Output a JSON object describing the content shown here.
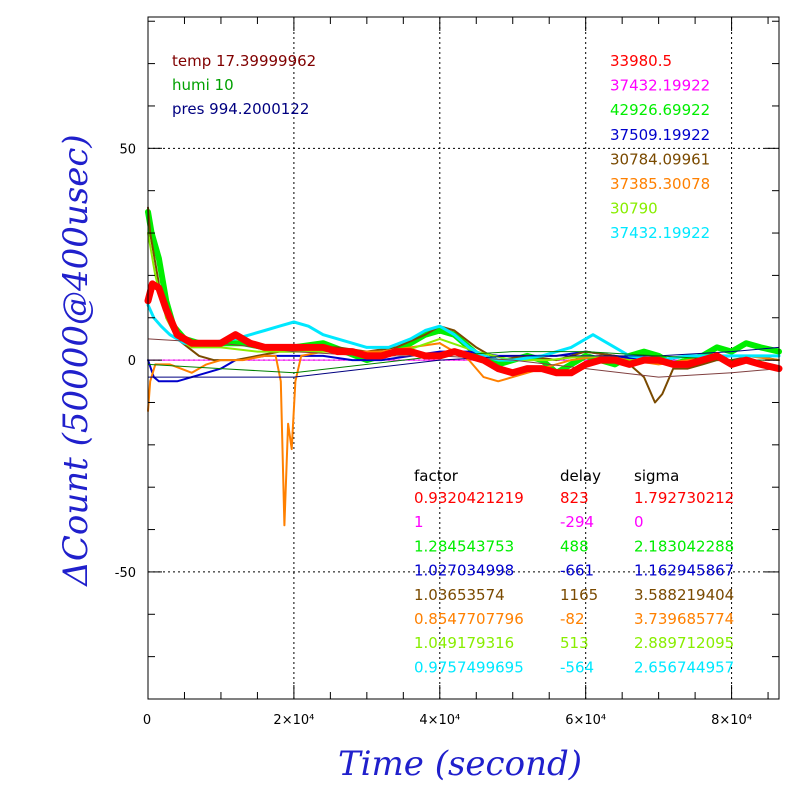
{
  "chart_data": {
    "type": "line",
    "xlabel": "Time (second)",
    "ylabel": "ΔCount (50000@400usec)",
    "xlim": [
      0,
      86500
    ],
    "ylim": [
      -80,
      81
    ],
    "grid": true,
    "x_tick_labels": [
      "0",
      "2×10⁴",
      "4×10⁴",
      "6×10⁴",
      "8×10⁴"
    ],
    "x_tick_values": [
      0,
      20000,
      40000,
      60000,
      80000
    ],
    "y_tick_labels": [
      "50",
      "0",
      "-50"
    ],
    "y_tick_values": [
      50,
      0,
      -50
    ],
    "env_info": [
      {
        "label": "temp 17.39999962",
        "color": "#800000"
      },
      {
        "label": "humi 10",
        "color": "#00a000"
      },
      {
        "label": "pres 994.2000122",
        "color": "#000080"
      }
    ],
    "reference_values": [
      "33980.5",
      "37432.19922",
      "42926.69922",
      "37509.19922",
      "30784.09961",
      "37385.30078",
      "30790",
      "37432.19922"
    ],
    "table_headers": [
      "factor",
      "delay",
      "sigma"
    ],
    "table_rows": [
      [
        "0.9320421219",
        "823",
        "1.792730212"
      ],
      [
        "1",
        "-294",
        "0"
      ],
      [
        "1.284543753",
        "488",
        "2.183042288"
      ],
      [
        "1.027034998",
        "-661",
        "1.162945867"
      ],
      [
        "1.03653574",
        "1165",
        "3.588219404"
      ],
      [
        "0.8547707796",
        "-82",
        "3.739685774"
      ],
      [
        "1.049179316",
        "513",
        "2.889712095"
      ],
      [
        "0.9757499695",
        "-564",
        "2.656744957"
      ]
    ],
    "series": [
      {
        "color": "#ff0000",
        "width": 7,
        "x": [
          0,
          600,
          1500,
          2500,
          4000,
          6000,
          8000,
          10000,
          12000,
          14000,
          16000,
          18000,
          20000,
          22000,
          24000,
          26000,
          28000,
          30000,
          32000,
          34000,
          36000,
          38000,
          40000,
          42000,
          44000,
          46000,
          48000,
          50000,
          52000,
          54000,
          56000,
          58000,
          60000,
          62000,
          64000,
          66000,
          68000,
          70000,
          72000,
          74000,
          76000,
          78000,
          80000,
          82000,
          84000,
          86500
        ],
        "y": [
          14,
          18,
          17,
          12,
          6,
          4,
          4,
          4,
          6,
          4,
          3,
          3,
          3,
          3,
          3,
          2,
          2,
          1,
          1,
          2,
          2,
          1,
          1,
          2,
          1,
          0,
          -2,
          -3,
          -2,
          -2,
          -3,
          -3,
          -1,
          0,
          0,
          -1,
          0,
          0,
          -1,
          -1,
          0,
          1,
          -1,
          0,
          -1,
          -2
        ]
      },
      {
        "color": "#ff00ff",
        "width": 1,
        "x": [
          0,
          86500
        ],
        "y": [
          0,
          0
        ]
      },
      {
        "color": "#00ee00",
        "width": 6,
        "x": [
          0,
          500,
          1500,
          2500,
          3500,
          5000,
          7000,
          10000,
          13000,
          16000,
          20000,
          24000,
          27000,
          30000,
          32000,
          34000,
          36000,
          38000,
          40000,
          42000,
          44000,
          46000,
          48000,
          50000,
          52000,
          54000,
          56000,
          58000,
          60000,
          62000,
          64000,
          66000,
          68000,
          70000,
          72000,
          74000,
          76000,
          78000,
          80000,
          82000,
          84000,
          86500
        ],
        "y": [
          35,
          30,
          24,
          14,
          8,
          5,
          4,
          4,
          4,
          3,
          3,
          4,
          2,
          0,
          1,
          2,
          4,
          6,
          7,
          6,
          3,
          0,
          -1,
          0,
          1,
          0,
          -3,
          -1,
          1,
          0,
          -1,
          1,
          2,
          1,
          -1,
          0,
          1,
          3,
          2,
          4,
          3,
          2
        ]
      },
      {
        "color": "#0000cc",
        "width": 2,
        "x": [
          0,
          800,
          1500,
          2500,
          4000,
          6000,
          8000,
          10000,
          12000,
          16000,
          20000,
          24000,
          28000,
          32000,
          36000,
          40000,
          44000,
          48000,
          52000,
          56000,
          60000,
          64000,
          68000,
          72000,
          76000,
          80000,
          84000,
          86500
        ],
        "y": [
          0,
          -4,
          -5,
          -5,
          -5,
          -4,
          -3,
          -2,
          0,
          1,
          1,
          1,
          0,
          0,
          1,
          2,
          2,
          1,
          1,
          1,
          2,
          1,
          0,
          -1,
          0,
          1,
          1,
          1
        ]
      },
      {
        "color": "#7a4a00",
        "width": 2,
        "x": [
          0,
          300,
          800,
          1500,
          2500,
          4000,
          5500,
          7000,
          9000,
          12000,
          15000,
          18000,
          20000,
          23000,
          26000,
          30000,
          34000,
          38000,
          40000,
          42000,
          45000,
          48000,
          52000,
          56000,
          60000,
          64000,
          66000,
          68000,
          69500,
          70500,
          72000,
          74000,
          76000,
          78000,
          80000,
          83000,
          86500
        ],
        "y": [
          36,
          30,
          25,
          18,
          10,
          5,
          3,
          1,
          0,
          0,
          1,
          2,
          2,
          3,
          3,
          2,
          3,
          6,
          8,
          7,
          3,
          0,
          1,
          0,
          2,
          1,
          -1,
          -4,
          -10,
          -8,
          -2,
          -2,
          -1,
          0,
          0,
          1,
          0
        ]
      },
      {
        "color": "#ff8000",
        "width": 2,
        "x": [
          0,
          300,
          1000,
          2000,
          3000,
          4500,
          6000,
          8000,
          10000,
          13000,
          16000,
          17500,
          18200,
          18700,
          19200,
          19700,
          20200,
          21000,
          24000,
          28000,
          32000,
          36000,
          40000,
          44000,
          46000,
          48000,
          50000,
          54000,
          58000,
          62000,
          66000,
          70000,
          74000,
          78000,
          82000,
          86500
        ],
        "y": [
          -12,
          -5,
          -1,
          -1,
          -1,
          -2,
          -3,
          -1,
          0,
          0,
          1,
          1,
          -5,
          -39,
          -15,
          -21,
          -5,
          1,
          2,
          2,
          2,
          3,
          4,
          0,
          -4,
          -5,
          -4,
          -2,
          0,
          1,
          0,
          -1,
          0,
          1,
          1,
          0
        ]
      },
      {
        "color": "#88ee00",
        "width": 2,
        "x": [
          0,
          1000,
          2500,
          4000,
          6000,
          10000,
          15000,
          20000,
          25000,
          30000,
          35000,
          40000,
          45000,
          50000,
          55000,
          60000,
          65000,
          70000,
          75000,
          80000,
          86500
        ],
        "y": [
          30,
          20,
          10,
          5,
          3,
          3,
          2,
          2,
          2,
          1,
          2,
          5,
          2,
          0,
          0,
          1,
          0,
          0,
          1,
          1,
          1
        ]
      },
      {
        "color": "#00e8ff",
        "width": 3,
        "x": [
          0,
          800,
          1800,
          3000,
          5000,
          8000,
          12000,
          16000,
          18000,
          20000,
          22000,
          24000,
          26000,
          28000,
          30000,
          33000,
          36000,
          38000,
          40000,
          42000,
          44000,
          46000,
          48000,
          50000,
          54000,
          58000,
          60000,
          61000,
          63000,
          66000,
          70000,
          74000,
          78000,
          82000,
          86500
        ],
        "y": [
          13,
          10,
          8,
          6,
          4,
          4,
          5,
          7,
          8,
          9,
          8,
          6,
          5,
          4,
          3,
          3,
          5,
          7,
          8,
          6,
          3,
          1,
          0,
          0,
          1,
          3,
          5,
          6,
          4,
          1,
          0,
          1,
          1,
          1,
          1
        ]
      },
      {
        "color": "#804040",
        "width": 1,
        "x": [
          0,
          10000,
          20000,
          30000,
          40000,
          50000,
          60000,
          70000,
          80000,
          86500
        ],
        "y": [
          5,
          4,
          2,
          1,
          1,
          0,
          -2,
          -4,
          -3,
          -2
        ]
      },
      {
        "color": "#000080",
        "width": 1,
        "x": [
          0,
          10000,
          20000,
          30000,
          40000,
          50000,
          60000,
          70000,
          80000,
          86500
        ],
        "y": [
          -4,
          -4,
          -4,
          -2,
          0,
          1,
          1,
          1,
          2,
          3
        ]
      },
      {
        "color": "#008000",
        "width": 1,
        "x": [
          0,
          10000,
          20000,
          30000,
          40000,
          50000,
          60000,
          70000,
          80000,
          86500
        ],
        "y": [
          -1,
          -2,
          -3,
          -1,
          1,
          2,
          2,
          1,
          0,
          0
        ]
      }
    ]
  }
}
